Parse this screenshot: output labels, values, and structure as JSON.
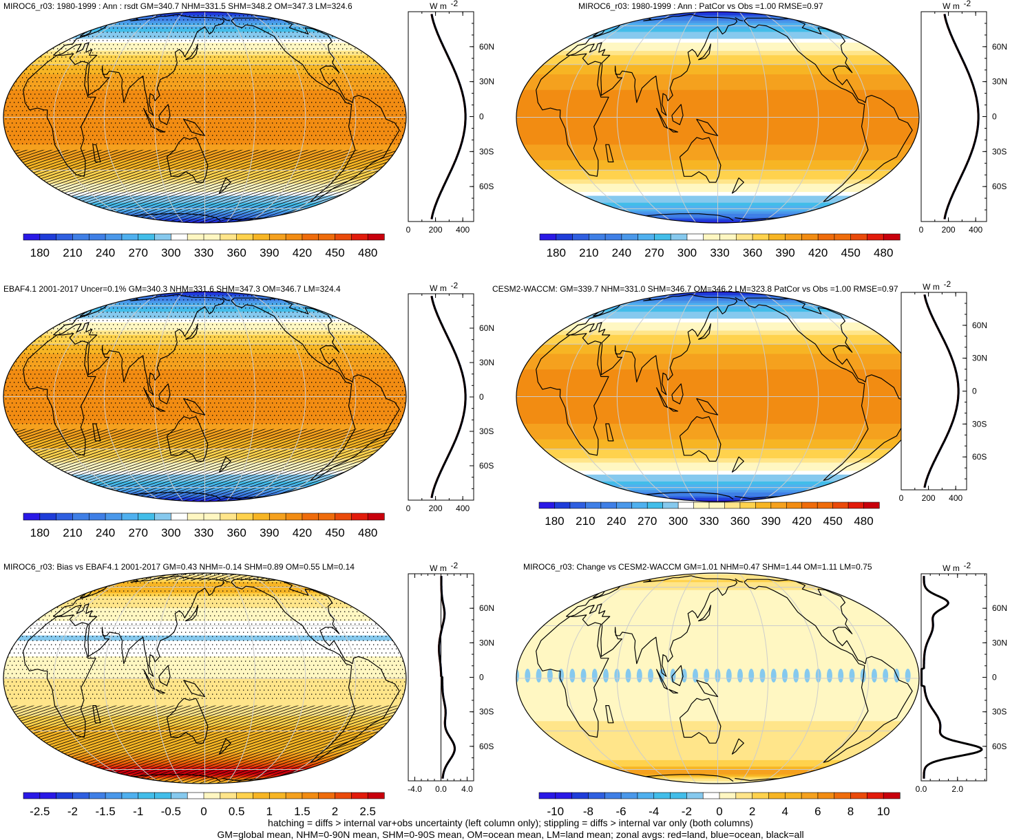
{
  "figure": {
    "footnote_1": "hatching = diffs > internal var+obs uncertainty (left column only); stippling = diffs > internal var only (both columns)",
    "footnote_2": "GM=global mean, NHM=0-90N mean, SHM=0-90S mean, OM=ocean mean, LM=land mean; zonal avgs: red=land, blue=ocean, black=all"
  },
  "colors": {
    "mean_palette": [
      "#2a19e6",
      "#1f3dd9",
      "#2f5fe0",
      "#3f7fe6",
      "#4a98ea",
      "#4fb0ef",
      "#42bde9",
      "#86c9ee",
      "#ffffff",
      "#fff7c2",
      "#ffe58a",
      "#ffd24d",
      "#f7b524",
      "#f5a11e",
      "#f28c12",
      "#ef6c0b",
      "#ea4a0a",
      "#e21b0b",
      "#c8000c"
    ],
    "coast": "#000000",
    "grid": "#cccccc",
    "zonal_all": "#000000",
    "zonal_land": "#d62020",
    "zonal_ocean": "#2040c0"
  },
  "chart_data": [
    {
      "id": "p1",
      "type": "map",
      "title": "MIROC6_r03: 1980-1999 : Ann : rsdt GM=340.7 NHM=331.5 SHM=348.2 OM=347.3 LM=324.6",
      "field": "mean",
      "hatching": true,
      "stippling": true,
      "colorbar": {
        "labels": [
          "180",
          "210",
          "240",
          "270",
          "300",
          "330",
          "360",
          "390",
          "420",
          "450",
          "480"
        ],
        "range": [
          165,
          495
        ]
      },
      "zonal": {
        "unit": "W m",
        "unit_sup": "-2",
        "xticks": [
          "0",
          "200",
          "400"
        ],
        "xrange": [
          0,
          480
        ],
        "lat_labels": [
          "60N",
          "30N",
          "0",
          "30S",
          "60S"
        ],
        "profile": "mean",
        "zero_line": false
      }
    },
    {
      "id": "p2",
      "type": "map",
      "title": "MIROC6_r03: 1980-1999 : Ann : PatCor vs Obs =1.00 RMSE=0.97",
      "field": "mean",
      "hatching": false,
      "stippling": false,
      "colorbar": {
        "labels": [
          "180",
          "210",
          "240",
          "270",
          "300",
          "330",
          "360",
          "390",
          "420",
          "450",
          "480"
        ],
        "range": [
          165,
          495
        ]
      },
      "zonal": {
        "unit": "W m",
        "unit_sup": "-2",
        "xticks": [
          "0",
          "200",
          "400"
        ],
        "xrange": [
          0,
          480
        ],
        "lat_labels": [
          "60N",
          "30N",
          "0",
          "30S",
          "60S"
        ],
        "profile": "mean",
        "zero_line": false
      }
    },
    {
      "id": "p3",
      "type": "map",
      "title": "EBAF4.1 2001-2017 Uncer=0.1% GM=340.3 NHM=331.6 SHM=347.3 OM=346.7 LM=324.4",
      "field": "mean",
      "hatching": true,
      "stippling": true,
      "colorbar": {
        "labels": [
          "180",
          "210",
          "240",
          "270",
          "300",
          "330",
          "360",
          "390",
          "420",
          "450",
          "480"
        ],
        "range": [
          165,
          495
        ]
      },
      "zonal": {
        "unit": "W m",
        "unit_sup": "-2",
        "xticks": [
          "0",
          "200",
          "400"
        ],
        "xrange": [
          0,
          480
        ],
        "lat_labels": [
          "60N",
          "30N",
          "0",
          "30S",
          "60S"
        ],
        "profile": "mean",
        "zero_line": false
      }
    },
    {
      "id": "p4",
      "type": "map",
      "title": "CESM2-WACCM: GM=339.7 NHM=331.0 SHM=346.7 OM=346.2 LM=323.8 PatCor vs Obs =1.00 RMSE=0.97",
      "field": "mean",
      "hatching": false,
      "stippling": false,
      "colorbar": {
        "labels": [
          "180",
          "210",
          "240",
          "270",
          "300",
          "330",
          "360",
          "390",
          "420",
          "450",
          "480"
        ],
        "range": [
          165,
          495
        ]
      },
      "zonal": {
        "unit": "W m",
        "unit_sup": "-2",
        "xticks": [
          "0",
          "200",
          "400"
        ],
        "xrange": [
          0,
          480
        ],
        "lat_labels": [
          "60N",
          "30N",
          "0",
          "30S",
          "60S"
        ],
        "profile": "mean",
        "zero_line": false
      }
    },
    {
      "id": "p5",
      "type": "map",
      "title": "MIROC6_r03: Bias vs EBAF4.1 2001-2017 GM=0.43 NHM=-0.14 SHM=0.89 OM=0.55 LM=0.14",
      "field": "bias",
      "hatching": true,
      "stippling": true,
      "colorbar": {
        "labels": [
          "-2.5",
          "-2",
          "-1.5",
          "-1",
          "-0.5",
          "0",
          "0.5",
          "1",
          "1.5",
          "2",
          "2.5"
        ],
        "range": [
          -2.75,
          2.75
        ]
      },
      "zonal": {
        "unit": "W m",
        "unit_sup": "-2",
        "xticks": [
          "-4.0",
          "0.0",
          "4.0"
        ],
        "xrange": [
          -5,
          5
        ],
        "lat_labels": [
          "60N",
          "30N",
          "0",
          "30S",
          "60S"
        ],
        "profile": "bias",
        "zero_line": true
      }
    },
    {
      "id": "p6",
      "type": "map",
      "title": "MIROC6_r03: Change vs CESM2-WACCM GM=1.01 NHM=0.47 SHM=1.44 OM=1.11 LM=0.75",
      "field": "change",
      "hatching": false,
      "stippling": false,
      "colorbar": {
        "labels": [
          "-10",
          "-8",
          "-6",
          "-4",
          "-2",
          "0",
          "2",
          "4",
          "6",
          "8",
          "10"
        ],
        "range": [
          -11,
          11
        ]
      },
      "zonal": {
        "unit": "W m",
        "unit_sup": "-2",
        "xticks": [
          "0.0",
          "2.0"
        ],
        "xrange": [
          0,
          3.6
        ],
        "lat_labels": [
          "60N",
          "30N",
          "0",
          "30S",
          "60S"
        ],
        "profile": "change",
        "zero_line": true
      }
    }
  ]
}
